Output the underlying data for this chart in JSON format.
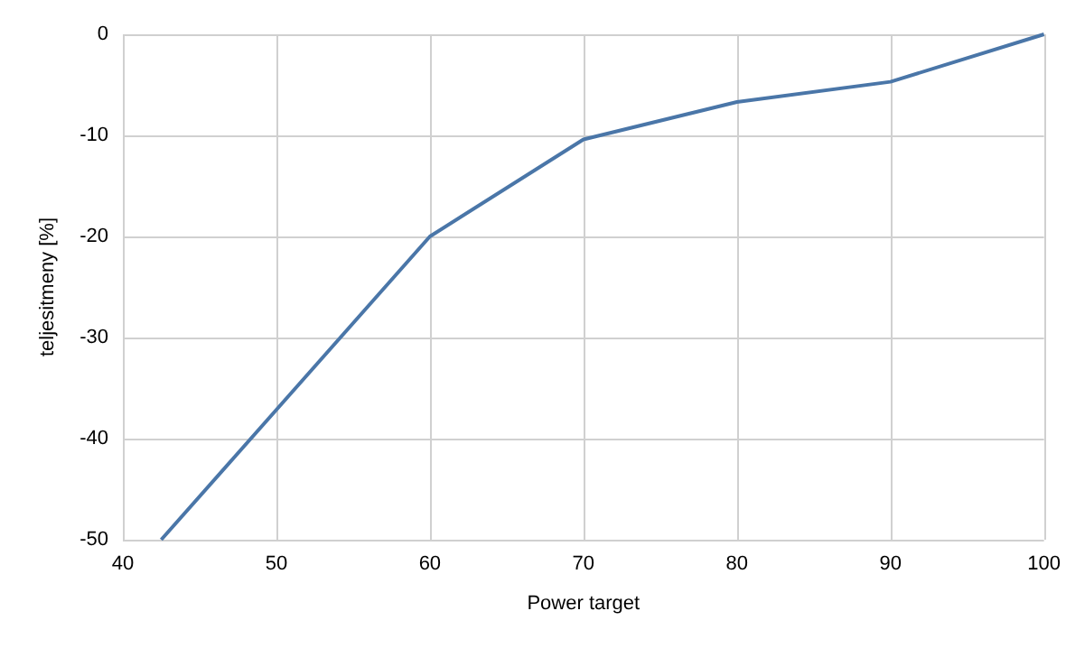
{
  "chart_data": {
    "type": "line",
    "xlabel": "Power target",
    "ylabel": "teljesitmeny [%]",
    "x": [
      42.5,
      60,
      70,
      80,
      90,
      100
    ],
    "series": [
      {
        "color": "#4a76a8",
        "values": [
          -50,
          -20,
          -10.4,
          -6.7,
          -4.7,
          0
        ]
      }
    ],
    "xlim": [
      40,
      100
    ],
    "xticks": [
      40,
      50,
      60,
      70,
      80,
      90,
      100
    ],
    "ylim": [
      -50,
      0
    ],
    "yticks": [
      -50,
      -40,
      -30,
      -20,
      -10,
      0
    ],
    "grid": true,
    "marker": "none",
    "line_style": "solid"
  }
}
